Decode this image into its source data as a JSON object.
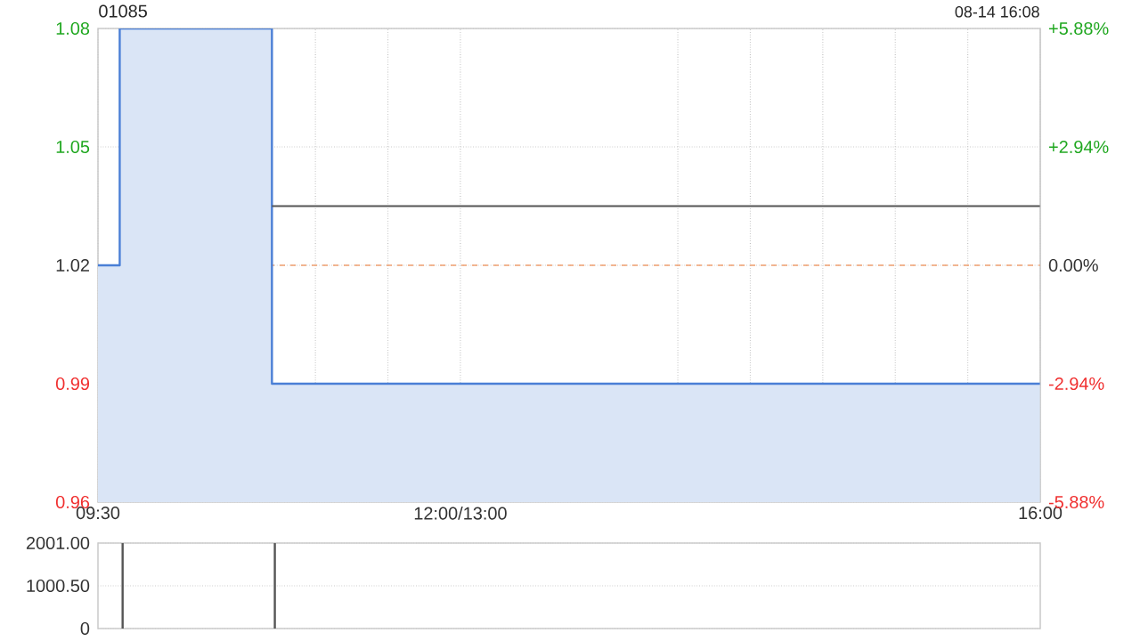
{
  "chart_data": [
    {
      "type": "area",
      "title": "01085",
      "annotations": [
        "08-14 16:08"
      ],
      "xlim": [
        9.5,
        16
      ],
      "xticks": [
        {
          "value": 9.5,
          "label": "09:30"
        },
        {
          "value": 10,
          "label": null
        },
        {
          "value": 10.5,
          "label": null
        },
        {
          "value": 11,
          "label": null
        },
        {
          "value": 11.5,
          "label": null
        },
        {
          "value": 12,
          "label": "12:00/13:00"
        },
        {
          "value": 13.5,
          "label": null
        },
        {
          "value": 14,
          "label": null
        },
        {
          "value": 14.5,
          "label": null
        },
        {
          "value": 15,
          "label": null
        },
        {
          "value": 15.5,
          "label": null
        },
        {
          "value": 16,
          "label": "16:00"
        }
      ],
      "ylim": [
        0.96,
        1.08
      ],
      "yticks": [
        0.96,
        0.99,
        1.02,
        1.05,
        1.08
      ],
      "y2lim": [
        -5.88,
        5.88
      ],
      "y2ticks": [
        {
          "value": -5.88,
          "label": "-5.88%"
        },
        {
          "value": -2.94,
          "label": "-2.94%"
        },
        {
          "value": 0,
          "label": "0.00%"
        },
        {
          "value": 2.94,
          "label": "+2.94%"
        },
        {
          "value": 5.88,
          "label": "+5.88%"
        }
      ],
      "grid": true,
      "ref_lines": [
        {
          "axis": "y",
          "value": 1.02,
          "color": "#f0a070",
          "line_style": "dashed"
        }
      ],
      "series": [
        {
          "type": "area",
          "color": "#4a7fd6",
          "x": [
            9.5,
            9.65,
            9.65,
            10.7,
            10.7,
            16
          ],
          "values": [
            1.02,
            1.02,
            1.08,
            1.08,
            0.99,
            0.99
          ]
        },
        {
          "type": "line",
          "color": "#555555",
          "x": [
            10.7,
            16
          ],
          "values": [
            1.035,
            1.035
          ]
        }
      ]
    },
    {
      "type": "bar",
      "xlim": [
        9.5,
        16
      ],
      "tick_labels": "y",
      "ylim": [
        0,
        2001
      ],
      "yticks": [
        0,
        {
          "value": 1000.5,
          "label": "1000.50"
        },
        {
          "value": 2001,
          "label": "2001.00"
        }
      ],
      "grid": "y",
      "series": [
        {
          "color": "#555555",
          "x": [
            9.67,
            10.72
          ],
          "values": [
            2000,
            2000
          ]
        }
      ]
    }
  ]
}
